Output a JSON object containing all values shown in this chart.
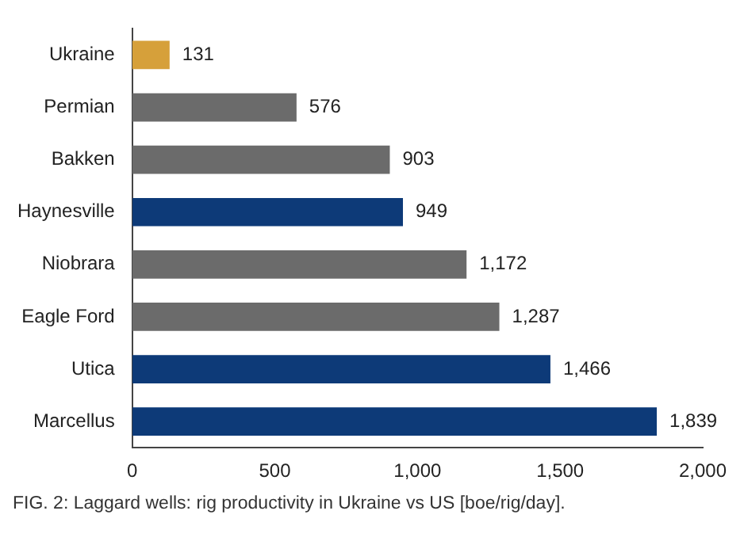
{
  "chart_data": {
    "type": "bar",
    "orientation": "horizontal",
    "title": "FIG. 2: Laggard wells: rig productivity in Ukraine vs US [boe/rig/day].",
    "categories": [
      "Ukraine",
      "Permian",
      "Bakken",
      "Haynesville",
      "Niobrara",
      "Eagle Ford",
      "Utica",
      "Marcellus"
    ],
    "values": [
      131,
      576,
      903,
      949,
      1172,
      1287,
      1466,
      1839
    ],
    "colors": [
      "#d6a03a",
      "#6b6b6b",
      "#6b6b6b",
      "#0d3a78",
      "#6b6b6b",
      "#6b6b6b",
      "#0d3a78",
      "#0d3a78"
    ],
    "value_labels": [
      "131",
      "576",
      "903",
      "949",
      "1,172",
      "1,287",
      "1,466",
      "1,839"
    ],
    "xlim": [
      0,
      2000
    ],
    "xticks": [
      0,
      500,
      {
        "value": 1000,
        "label": "1,000"
      },
      {
        "value": 1500,
        "label": "1,500"
      },
      {
        "value": 2000,
        "label": "2,000"
      }
    ],
    "grid": false,
    "legend": false
  }
}
